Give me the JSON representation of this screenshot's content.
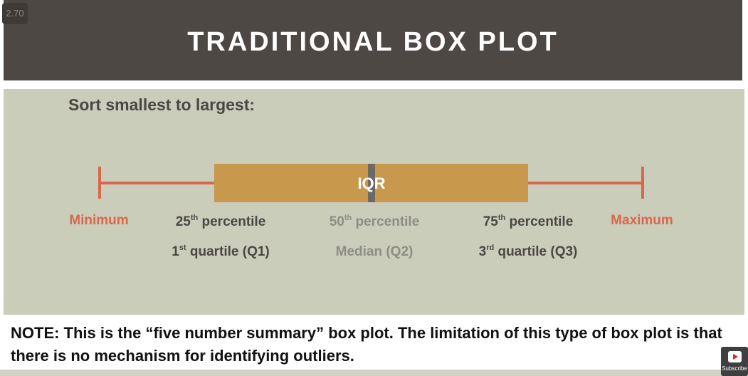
{
  "header": {
    "title": "TRADITIONAL BOX PLOT",
    "speed": "2.70"
  },
  "panel": {
    "subtitle": "Sort smallest to largest:"
  },
  "box": {
    "inner_label": "IQR"
  },
  "labels": {
    "minimum": "Minimum",
    "maximum": "Maximum",
    "q1_line1_num": "25",
    "q1_line1_sup": "th",
    "q1_line1_text": " percentile",
    "q1_line2_num": "1",
    "q1_line2_sup": "st",
    "q1_line2_text": " quartile (Q1)",
    "median_line1_num": "50",
    "median_line1_sup": "th",
    "median_line1_text": " percentile",
    "median_line2": "Median (Q2)",
    "q3_line1_num": "75",
    "q3_line1_sup": "th",
    "q3_line1_text": " percentile",
    "q3_line2_num": "3",
    "q3_line2_sup": "rd",
    "q3_line2_text": " quartile (Q3)"
  },
  "note": "NOTE: This is the “five number summary” box plot. The limitation of this type of box plot is that there is no mechanism for identifying outliers.",
  "subscribe": {
    "label": "Subscribe",
    "icon": "youtube-play-icon"
  },
  "colors": {
    "header_bg": "#4e4845",
    "panel_bg": "#cbcdbb",
    "box_fill": "#c8984c",
    "whisker": "#d9674a",
    "median_marker": "#6d6a66",
    "text_dark": "#4b4744",
    "text_muted": "#8e8c86"
  }
}
